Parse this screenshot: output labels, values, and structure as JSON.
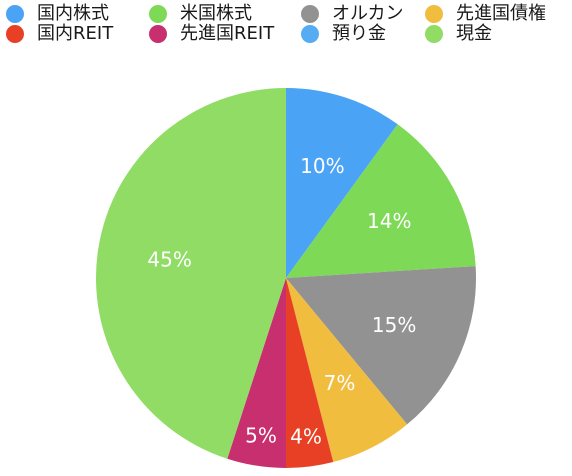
{
  "chart_data": {
    "type": "pie",
    "categories": [
      "国内株式",
      "米国株式",
      "オルカン",
      "先進国債権",
      "国内REIT",
      "先進国REIT",
      "預り金",
      "現金"
    ],
    "colors": [
      "#4aa3f5",
      "#7ed957",
      "#929292",
      "#f1bd3e",
      "#e84025",
      "#c72f6f",
      "#55acf2",
      "#90dc65"
    ],
    "slices": [
      {
        "category": "国内株式",
        "value": 10,
        "label": "10%",
        "color": "#4aa3f5"
      },
      {
        "category": "米国株式",
        "value": 14,
        "label": "14%",
        "color": "#7ed957"
      },
      {
        "category": "オルカン",
        "value": 15,
        "label": "15%",
        "color": "#929292"
      },
      {
        "category": "先進国債権",
        "value": 7,
        "label": "7%",
        "color": "#f1bd3e"
      },
      {
        "category": "国内REIT",
        "value": 4,
        "label": "4%",
        "color": "#e84025"
      },
      {
        "category": "先進国REIT",
        "value": 5,
        "label": "5%",
        "color": "#c72f6f"
      },
      {
        "category": "現金",
        "value": 45,
        "label": "45%",
        "color": "#90dc65"
      }
    ],
    "legend_position": "top"
  }
}
